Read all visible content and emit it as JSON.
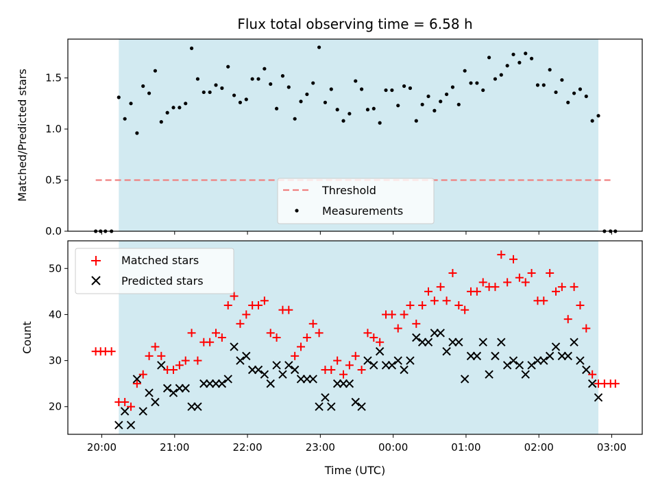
{
  "chart_data": [
    {
      "type": "scatter",
      "title": "Flux total observing time = 6.58 h",
      "xlabel": "",
      "ylabel": "Matched/Predicted stars",
      "ylim": [
        0,
        1.88
      ],
      "yticks": [
        "0.0",
        "0.5",
        "1.0",
        "1.5"
      ],
      "shaded_region": {
        "start": "20:14",
        "end": "02:49",
        "color": "#add8e6"
      },
      "threshold": {
        "name": "Threshold",
        "value": 0.5,
        "start": "19:55",
        "end": "03:01",
        "color": "#f08080"
      },
      "legend_position": "lower center",
      "series": [
        {
          "name": "Measurements",
          "color": "#000000",
          "x": [
            "19:55",
            "19:59",
            "20:03",
            "20:08",
            "20:14",
            "20:19",
            "20:24",
            "20:29",
            "20:34",
            "20:39",
            "20:44",
            "20:49",
            "20:54",
            "20:59",
            "21:04",
            "21:09",
            "21:14",
            "21:19",
            "21:24",
            "21:29",
            "21:34",
            "21:39",
            "21:44",
            "21:49",
            "21:54",
            "21:59",
            "22:04",
            "22:09",
            "22:14",
            "22:19",
            "22:24",
            "22:29",
            "22:34",
            "22:39",
            "22:44",
            "22:49",
            "22:54",
            "22:59",
            "23:04",
            "23:09",
            "23:14",
            "23:19",
            "23:24",
            "23:29",
            "23:34",
            "23:39",
            "23:44",
            "23:49",
            "23:54",
            "23:59",
            "00:04",
            "00:09",
            "00:14",
            "00:19",
            "00:24",
            "00:29",
            "00:34",
            "00:39",
            "00:44",
            "00:49",
            "00:54",
            "00:59",
            "01:04",
            "01:09",
            "01:14",
            "01:19",
            "01:24",
            "01:29",
            "01:34",
            "01:39",
            "01:44",
            "01:49",
            "01:54",
            "01:59",
            "02:04",
            "02:09",
            "02:14",
            "02:19",
            "02:24",
            "02:29",
            "02:34",
            "02:39",
            "02:44",
            "02:49",
            "02:54",
            "02:59",
            "03:03"
          ],
          "y": [
            0,
            0,
            0,
            0,
            1.31,
            1.1,
            1.25,
            0.96,
            1.42,
            1.35,
            1.57,
            1.07,
            1.16,
            1.21,
            1.21,
            1.25,
            1.79,
            1.49,
            1.36,
            1.36,
            1.43,
            1.4,
            1.61,
            1.33,
            1.26,
            1.29,
            1.49,
            1.49,
            1.59,
            1.44,
            1.2,
            1.52,
            1.41,
            1.1,
            1.27,
            1.34,
            1.45,
            1.8,
            1.26,
            1.39,
            1.19,
            1.08,
            1.15,
            1.47,
            1.39,
            1.19,
            1.2,
            1.06,
            1.38,
            1.38,
            1.23,
            1.42,
            1.4,
            1.08,
            1.24,
            1.32,
            1.18,
            1.27,
            1.34,
            1.41,
            1.24,
            1.57,
            1.45,
            1.45,
            1.38,
            1.7,
            1.49,
            1.53,
            1.62,
            1.73,
            1.65,
            1.74,
            1.69,
            1.43,
            1.43,
            1.58,
            1.36,
            1.48,
            1.26,
            1.35,
            1.39,
            1.32,
            1.08,
            1.13,
            0,
            0,
            0
          ]
        }
      ]
    },
    {
      "type": "scatter",
      "title": "",
      "xlabel": "Time (UTC)",
      "ylabel": "Count",
      "ylim": [
        14,
        56
      ],
      "yticks": [
        "20",
        "30",
        "40",
        "50"
      ],
      "xticks": [
        "20:00",
        "21:00",
        "22:00",
        "23:00",
        "00:00",
        "01:00",
        "02:00",
        "03:00"
      ],
      "legend_position": "upper left",
      "series": [
        {
          "name": "Matched stars",
          "color": "#ff0000",
          "marker": "plus",
          "x": [
            "19:55",
            "19:59",
            "20:03",
            "20:08",
            "20:14",
            "20:19",
            "20:24",
            "20:29",
            "20:34",
            "20:39",
            "20:44",
            "20:49",
            "20:54",
            "20:59",
            "21:04",
            "21:09",
            "21:14",
            "21:19",
            "21:24",
            "21:29",
            "21:34",
            "21:39",
            "21:44",
            "21:49",
            "21:54",
            "21:59",
            "22:04",
            "22:09",
            "22:14",
            "22:19",
            "22:24",
            "22:29",
            "22:34",
            "22:39",
            "22:44",
            "22:49",
            "22:54",
            "22:59",
            "23:04",
            "23:09",
            "23:14",
            "23:19",
            "23:24",
            "23:29",
            "23:34",
            "23:39",
            "23:44",
            "23:49",
            "23:54",
            "23:59",
            "00:04",
            "00:09",
            "00:14",
            "00:19",
            "00:24",
            "00:29",
            "00:34",
            "00:39",
            "00:44",
            "00:49",
            "00:54",
            "00:59",
            "01:04",
            "01:09",
            "01:14",
            "01:19",
            "01:24",
            "01:29",
            "01:34",
            "01:39",
            "01:44",
            "01:49",
            "01:54",
            "01:59",
            "02:04",
            "02:09",
            "02:14",
            "02:19",
            "02:24",
            "02:29",
            "02:34",
            "02:39",
            "02:44",
            "02:49",
            "02:54",
            "02:59",
            "03:03"
          ],
          "y": [
            32,
            32,
            32,
            32,
            21,
            21,
            20,
            25,
            27,
            31,
            33,
            31,
            28,
            28,
            29,
            30,
            36,
            30,
            34,
            34,
            36,
            35,
            42,
            44,
            38,
            40,
            42,
            42,
            43,
            36,
            35,
            41,
            41,
            31,
            33,
            35,
            38,
            36,
            28,
            28,
            30,
            27,
            29,
            31,
            28,
            36,
            35,
            34,
            40,
            40,
            37,
            40,
            42,
            38,
            42,
            45,
            43,
            46,
            43,
            49,
            42,
            41,
            45,
            45,
            47,
            46,
            46,
            53,
            47,
            52,
            48,
            47,
            49,
            43,
            43,
            49,
            45,
            46,
            39,
            46,
            42,
            37,
            27,
            25,
            25,
            25,
            25
          ]
        },
        {
          "name": "Predicted stars",
          "color": "#000000",
          "marker": "x",
          "x": [
            "20:14",
            "20:19",
            "20:24",
            "20:29",
            "20:34",
            "20:39",
            "20:44",
            "20:49",
            "20:54",
            "20:59",
            "21:04",
            "21:09",
            "21:14",
            "21:19",
            "21:24",
            "21:29",
            "21:34",
            "21:39",
            "21:44",
            "21:49",
            "21:54",
            "21:59",
            "22:04",
            "22:09",
            "22:14",
            "22:19",
            "22:24",
            "22:29",
            "22:34",
            "22:39",
            "22:44",
            "22:49",
            "22:54",
            "22:59",
            "23:04",
            "23:09",
            "23:14",
            "23:19",
            "23:24",
            "23:29",
            "23:34",
            "23:39",
            "23:44",
            "23:49",
            "23:54",
            "23:59",
            "00:04",
            "00:09",
            "00:14",
            "00:19",
            "00:24",
            "00:29",
            "00:34",
            "00:39",
            "00:44",
            "00:49",
            "00:54",
            "00:59",
            "01:04",
            "01:09",
            "01:14",
            "01:19",
            "01:24",
            "01:29",
            "01:34",
            "01:39",
            "01:44",
            "01:49",
            "01:54",
            "01:59",
            "02:04",
            "02:09",
            "02:14",
            "02:19",
            "02:24",
            "02:29",
            "02:34",
            "02:39",
            "02:44",
            "02:49"
          ],
          "y": [
            16,
            19,
            16,
            26,
            19,
            23,
            21,
            29,
            24,
            23,
            24,
            24,
            20,
            20,
            25,
            25,
            25,
            25,
            26,
            33,
            30,
            31,
            28,
            28,
            27,
            25,
            29,
            27,
            29,
            28,
            26,
            26,
            26,
            20,
            22,
            20,
            25,
            25,
            25,
            21,
            20,
            30,
            29,
            32,
            29,
            29,
            30,
            28,
            30,
            35,
            34,
            34,
            36,
            36,
            32,
            34,
            34,
            26,
            31,
            31,
            34,
            27,
            31,
            34,
            29,
            30,
            29,
            27,
            29,
            30,
            30,
            31,
            33,
            31,
            31,
            34,
            30,
            28,
            25,
            22
          ]
        }
      ]
    }
  ]
}
